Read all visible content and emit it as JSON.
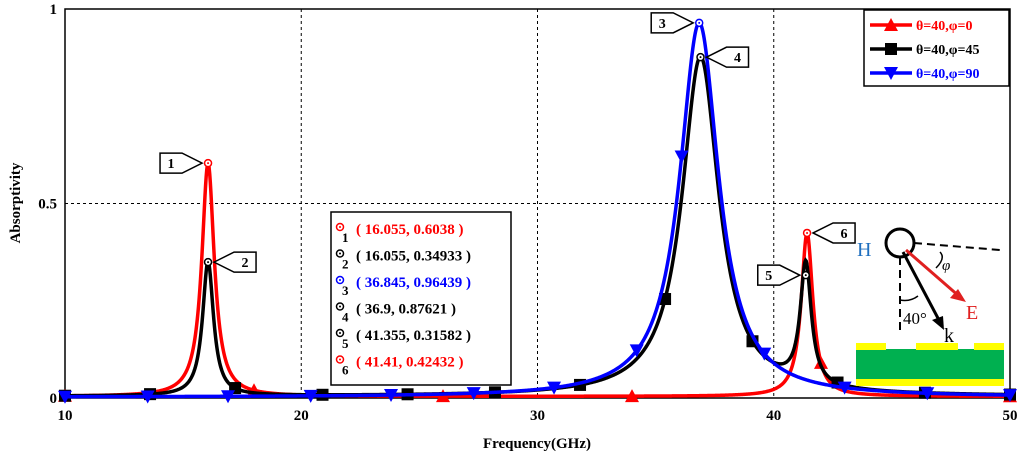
{
  "chart_data": {
    "type": "line",
    "title": "",
    "xlabel": "Frequency(GHz)",
    "ylabel": "Absorptivity",
    "xlim": [
      10,
      50
    ],
    "ylim": [
      0,
      1
    ],
    "xticks": [
      "10",
      "20",
      "30",
      "40",
      "50"
    ],
    "xtick_values": [
      10,
      20,
      30,
      40,
      50
    ],
    "yticks": [
      "0",
      "0.5",
      "1"
    ],
    "ytick_values": [
      0,
      0.5,
      1
    ],
    "grid": true,
    "legend_position": "top-right",
    "series": [
      {
        "name": "θ=40,φ=0",
        "color": "#ff0000",
        "marker": "triangle-up",
        "resonances": [
          {
            "f": 16.055,
            "a": 0.6038,
            "gamma": 0.32
          },
          {
            "f": 41.41,
            "a": 0.42432,
            "gamma": 0.3
          }
        ],
        "baseline": 0.004,
        "marker_x": [
          10,
          18,
          26,
          34,
          42,
          50
        ]
      },
      {
        "name": "θ=40,φ=45",
        "color": "#000000",
        "marker": "square",
        "resonances": [
          {
            "f": 16.055,
            "a": 0.34933,
            "gamma": 0.28
          },
          {
            "f": 36.9,
            "a": 0.87621,
            "gamma": 0.95
          },
          {
            "f": 41.355,
            "a": 0.31582,
            "gamma": 0.28
          }
        ],
        "baseline": 0.004,
        "marker_x": [
          10,
          13.6,
          17.2,
          20.9,
          24.5,
          28.2,
          31.8,
          35.4,
          39.1,
          42.7,
          46.4,
          50
        ]
      },
      {
        "name": "θ=40,φ=90",
        "color": "#0000ff",
        "marker": "triangle-down",
        "resonances": [
          {
            "f": 36.845,
            "a": 0.96439,
            "gamma": 1.0
          }
        ],
        "baseline": 0.002,
        "marker_x": [
          10,
          13.5,
          16.9,
          20.4,
          23.8,
          27.3,
          30.7,
          34.2,
          36.1,
          39.6,
          43.0,
          46.5,
          50
        ]
      }
    ],
    "data_points": [
      {
        "id": "1",
        "x": 16.055,
        "y": 0.6038,
        "label": "( 16.055, 0.6038 )",
        "color": "#ff0000",
        "flag": "right"
      },
      {
        "id": "2",
        "x": 16.055,
        "y": 0.34933,
        "label": "( 16.055, 0.34933 )",
        "color": "#000000",
        "flag": "left"
      },
      {
        "id": "3",
        "x": 36.845,
        "y": 0.96439,
        "label": "( 36.845, 0.96439 )",
        "color": "#0000ff",
        "flag": "right"
      },
      {
        "id": "4",
        "x": 36.9,
        "y": 0.87621,
        "label": "( 36.9, 0.87621 )",
        "color": "#000000",
        "flag": "left"
      },
      {
        "id": "5",
        "x": 41.355,
        "y": 0.31582,
        "label": "( 41.355, 0.31582 )",
        "color": "#000000",
        "flag": "right"
      },
      {
        "id": "6",
        "x": 41.41,
        "y": 0.42432,
        "label": "( 41.41, 0.42432 )",
        "color": "#ff0000",
        "flag": "left"
      }
    ]
  },
  "inset": {
    "h_label": "H",
    "e_label": "E",
    "k_label": "k",
    "phi_label": "φ",
    "theta_label": "40°",
    "h_color": "#1f6fbf",
    "e_color": "#e02020",
    "substrate_color": "#00b050",
    "patch_color": "#ffff00"
  }
}
